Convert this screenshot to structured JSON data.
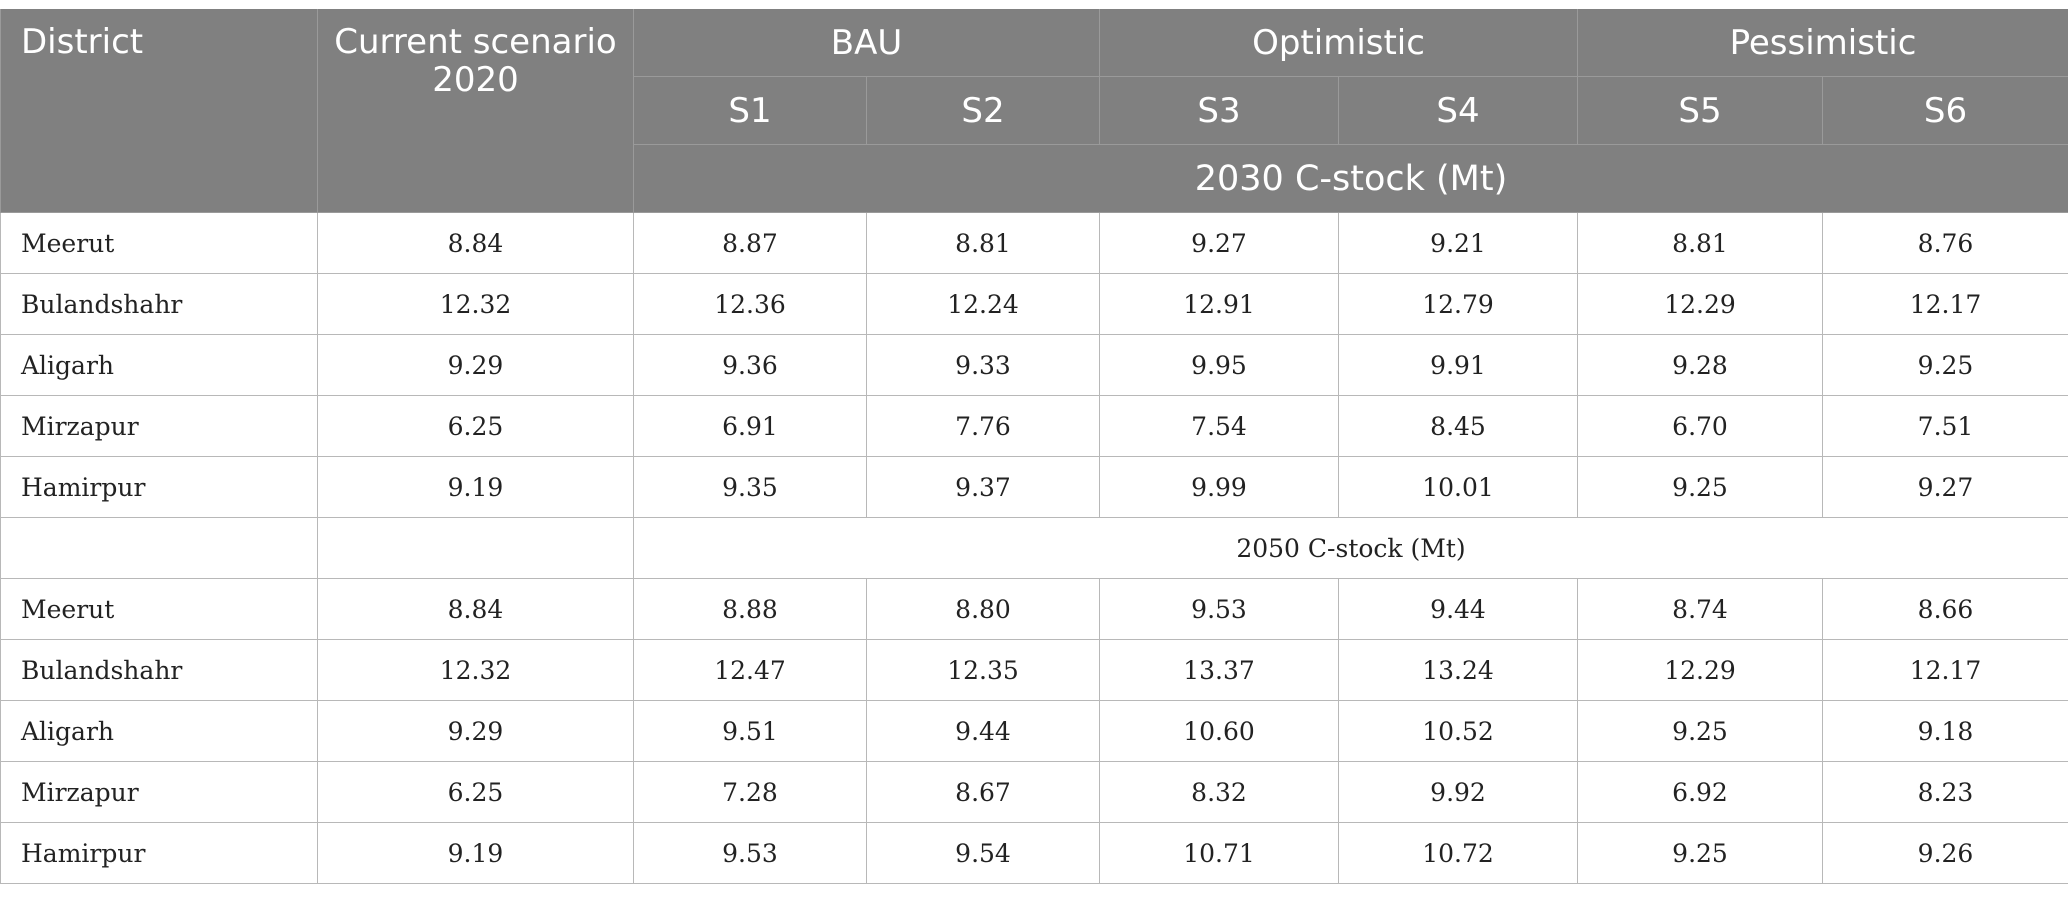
{
  "header": {
    "district": "District",
    "current": "Current scenario 2020",
    "groups": [
      "BAU",
      "Optimistic",
      "Pessimistic"
    ],
    "scenarios": [
      "S1",
      "S2",
      "S3",
      "S4",
      "S5",
      "S6"
    ],
    "unit_2030": "2030 C-stock (Mt)"
  },
  "section_2030": [
    {
      "district": "Meerut",
      "current": "8.84",
      "s": [
        "8.87",
        "8.81",
        "9.27",
        "9.21",
        "8.81",
        "8.76"
      ]
    },
    {
      "district": "Bulandshahr",
      "current": "12.32",
      "s": [
        "12.36",
        "12.24",
        "12.91",
        "12.79",
        "12.29",
        "12.17"
      ]
    },
    {
      "district": "Aligarh",
      "current": "9.29",
      "s": [
        "9.36",
        "9.33",
        "9.95",
        "9.91",
        "9.28",
        "9.25"
      ]
    },
    {
      "district": "Mirzapur",
      "current": "6.25",
      "s": [
        "6.91",
        "7.76",
        "7.54",
        "8.45",
        "6.70",
        "7.51"
      ]
    },
    {
      "district": "Hamirpur",
      "current": "9.19",
      "s": [
        "9.35",
        "9.37",
        "9.99",
        "10.01",
        "9.25",
        "9.27"
      ]
    }
  ],
  "unit_2050": "2050 C-stock (Mt)",
  "section_2050": [
    {
      "district": "Meerut",
      "current": "8.84",
      "s": [
        "8.88",
        "8.80",
        "9.53",
        "9.44",
        "8.74",
        "8.66"
      ]
    },
    {
      "district": "Bulandshahr",
      "current": "12.32",
      "s": [
        "12.47",
        "12.35",
        "13.37",
        "13.24",
        "12.29",
        "12.17"
      ]
    },
    {
      "district": "Aligarh",
      "current": "9.29",
      "s": [
        "9.51",
        "9.44",
        "10.60",
        "10.52",
        "9.25",
        "9.18"
      ]
    },
    {
      "district": "Mirzapur",
      "current": "6.25",
      "s": [
        "7.28",
        "8.67",
        "8.32",
        "9.92",
        "6.92",
        "8.23"
      ]
    },
    {
      "district": "Hamirpur",
      "current": "9.19",
      "s": [
        "9.53",
        "9.54",
        "10.71",
        "10.72",
        "9.25",
        "9.26"
      ]
    }
  ]
}
